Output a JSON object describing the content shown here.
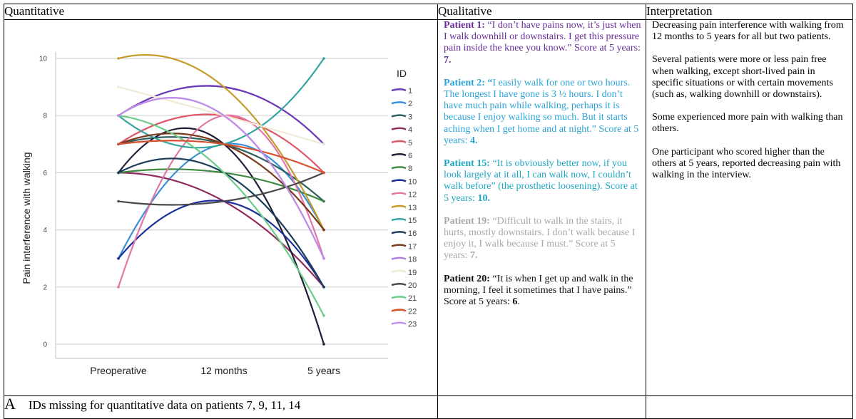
{
  "headers": {
    "quantitative": "Quantitative",
    "qualitative": "Qualitative",
    "interpretation": "Interpretation"
  },
  "chart_data": {
    "type": "line",
    "ylabel": "Pain interference with walking",
    "xlabel": "",
    "categories": [
      "Preoperative",
      "12 months",
      "5 years"
    ],
    "ylim": [
      0,
      10
    ],
    "yticks": [
      0,
      2,
      4,
      6,
      8,
      10
    ],
    "grid": true,
    "legend_title": "ID",
    "legend_placement": "right",
    "series": [
      {
        "name": "1",
        "color": "#6a3ab8",
        "values": [
          8,
          9,
          7
        ]
      },
      {
        "name": "2",
        "color": "#3a8fd8",
        "values": [
          3,
          7,
          4
        ]
      },
      {
        "name": "3",
        "color": "#2f5f60",
        "values": [
          7,
          7,
          5
        ]
      },
      {
        "name": "4",
        "color": "#8e2a5a",
        "values": [
          6,
          5,
          2
        ]
      },
      {
        "name": "5",
        "color": "#e0566a",
        "values": [
          7,
          8,
          6
        ]
      },
      {
        "name": "6",
        "color": "#1e1e38",
        "values": [
          6,
          7,
          0
        ]
      },
      {
        "name": "8",
        "color": "#3f8a40",
        "values": [
          6,
          6,
          5
        ]
      },
      {
        "name": "10",
        "color": "#1c2f9c",
        "values": [
          3,
          5,
          2
        ]
      },
      {
        "name": "12",
        "color": "#e374a6",
        "values": [
          2,
          8,
          3
        ]
      },
      {
        "name": "13",
        "color": "#c59b2c",
        "values": [
          10,
          9,
          4
        ]
      },
      {
        "name": "15",
        "color": "#36a5a2",
        "values": [
          8,
          7,
          10
        ]
      },
      {
        "name": "16",
        "color": "#1d3d5a",
        "values": [
          6,
          6,
          2
        ]
      },
      {
        "name": "17",
        "color": "#7a3a1e",
        "values": [
          7,
          7,
          4
        ]
      },
      {
        "name": "18",
        "color": "#b07ae0",
        "values": [
          8,
          8,
          3
        ]
      },
      {
        "name": "19",
        "color": "#f0e9d6",
        "values": [
          9,
          8,
          7
        ]
      },
      {
        "name": "20",
        "color": "#4a4a4a",
        "values": [
          5,
          5,
          6
        ]
      },
      {
        "name": "21",
        "color": "#6ccc86",
        "values": [
          8,
          6,
          1
        ]
      },
      {
        "name": "22",
        "color": "#d8502c",
        "values": [
          7,
          7,
          6
        ]
      },
      {
        "name": "23",
        "color": "#c08ee8",
        "values": [
          8,
          8,
          3
        ]
      }
    ]
  },
  "qualitative": {
    "p1_label": "Patient 1:",
    "p1_text": " “I don’t have pains now, it’s just when I walk downhill or downstairs. I get this pressure pain inside the knee you know.” Score at 5 years: ",
    "p1_score": "7.",
    "p2_label": "Patient 2: “",
    "p2_text": "I easily walk for one or two hours. The longest I have gone is 3 ½ hours. I don’t have much pain while walking, perhaps it is because I enjoy walking so much. But it starts aching when I get home and at night.” Score at 5 years: ",
    "p2_score": "4.",
    "p15_label": "Patient 15:",
    "p15_text": " “It is obviously better now, if you look largely at it all, I can walk now, I couldn’t walk before” (the prosthetic loosening). Score at 5 years: ",
    "p15_score": "10.",
    "p19_label": "Patient 19:",
    "p19_text": " “Difficult to walk in the stairs, it hurts, mostly downstairs. I don’t walk because I enjoy it, I walk because I must.” Score at 5 years: ",
    "p19_score": "7.",
    "p20_label": "Patient 20:",
    "p20_text": " “It is when I get up and walk in the morning, I feel it sometimes that I have pains.” Score at 5 years: ",
    "p20_score": "6",
    "p20_end": "."
  },
  "interpretation": {
    "para1": "Decreasing pain interference with walking from 12 months to 5 years for all but two patients.",
    "para2": "Several patients were more or less pain free when walking, except short-lived pain in specific situations or with certain movements (such as, walking downhill or downstairs).",
    "para3": "Some experienced more pain with walking than others.",
    "para4": "One participant who scored higher than the others at 5 years, reported decreasing pain with walking in the interview."
  },
  "footer": {
    "letter": "A",
    "note": "IDs missing for quantitative data on patients 7, 9, 11, 14"
  }
}
